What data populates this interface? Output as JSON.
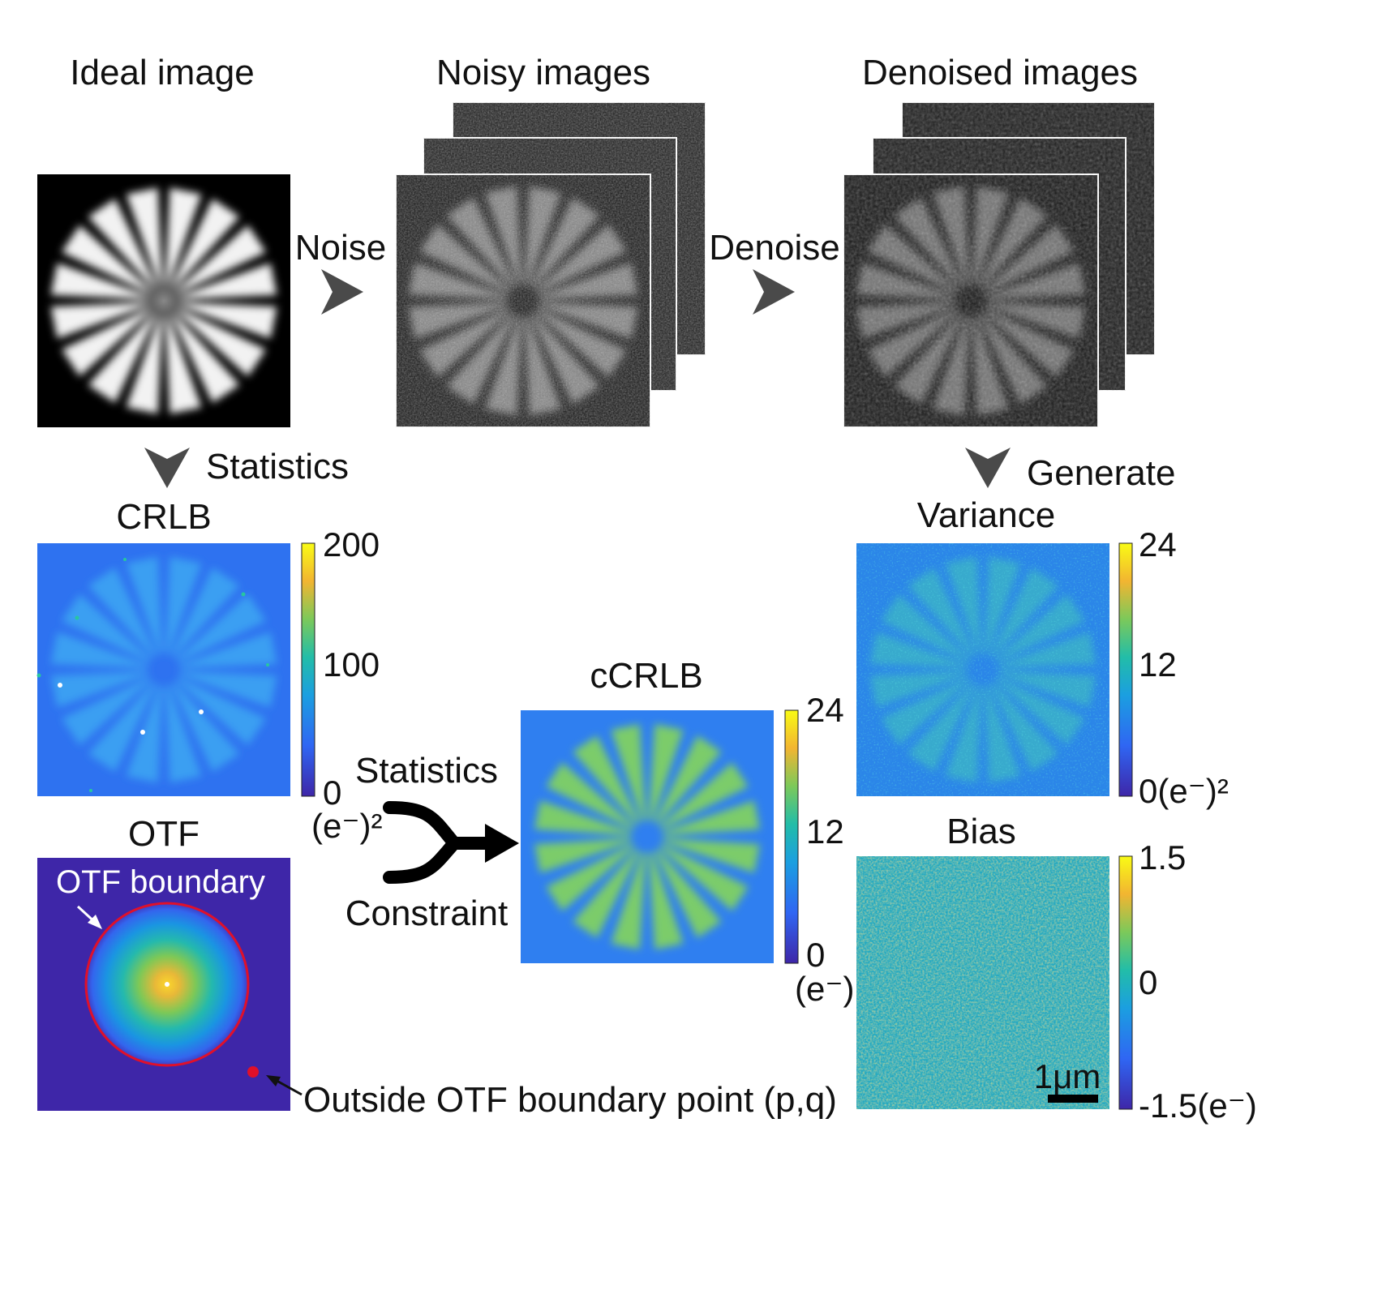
{
  "titles": {
    "ideal": "Ideal image",
    "noisy": "Noisy images",
    "denoised": "Denoised images",
    "crlb": "CRLB",
    "otf": "OTF",
    "ccrlb": "cCRLB",
    "variance": "Variance",
    "bias": "Bias"
  },
  "arrows": {
    "noise": "Noise",
    "denoise": "Denoise",
    "statistics_top": "Statistics",
    "generate": "Generate",
    "statistics_merge": "Statistics",
    "constraint": "Constraint"
  },
  "annotations": {
    "otf_boundary": "OTF boundary",
    "outside_point": "Outside OTF boundary point (p,q)",
    "scale_bar": "1μm"
  },
  "colorbars": {
    "crlb": {
      "max": "200",
      "mid": "100",
      "min": "0",
      "unit": "(e⁻)²"
    },
    "ccrlb": {
      "max": "24",
      "mid": "12",
      "min": "0",
      "unit": "(e⁻)"
    },
    "variance": {
      "max": "24",
      "mid": "12",
      "min": "0(e⁻)²"
    },
    "bias": {
      "max": "1.5",
      "mid": "0",
      "min": "-1.5(e⁻)"
    }
  },
  "colors": {
    "parula_low": "#3e26a8",
    "parula_mid": "#1fb5b0",
    "parula_high": "#f9fb15",
    "arrow_gray": "#4a4a4a",
    "otf_boundary": "#e0102a",
    "outside_point": "#e0102a"
  },
  "icons": [
    "arrow-right-icon",
    "arrow-down-icon",
    "merge-arrow-icon"
  ]
}
